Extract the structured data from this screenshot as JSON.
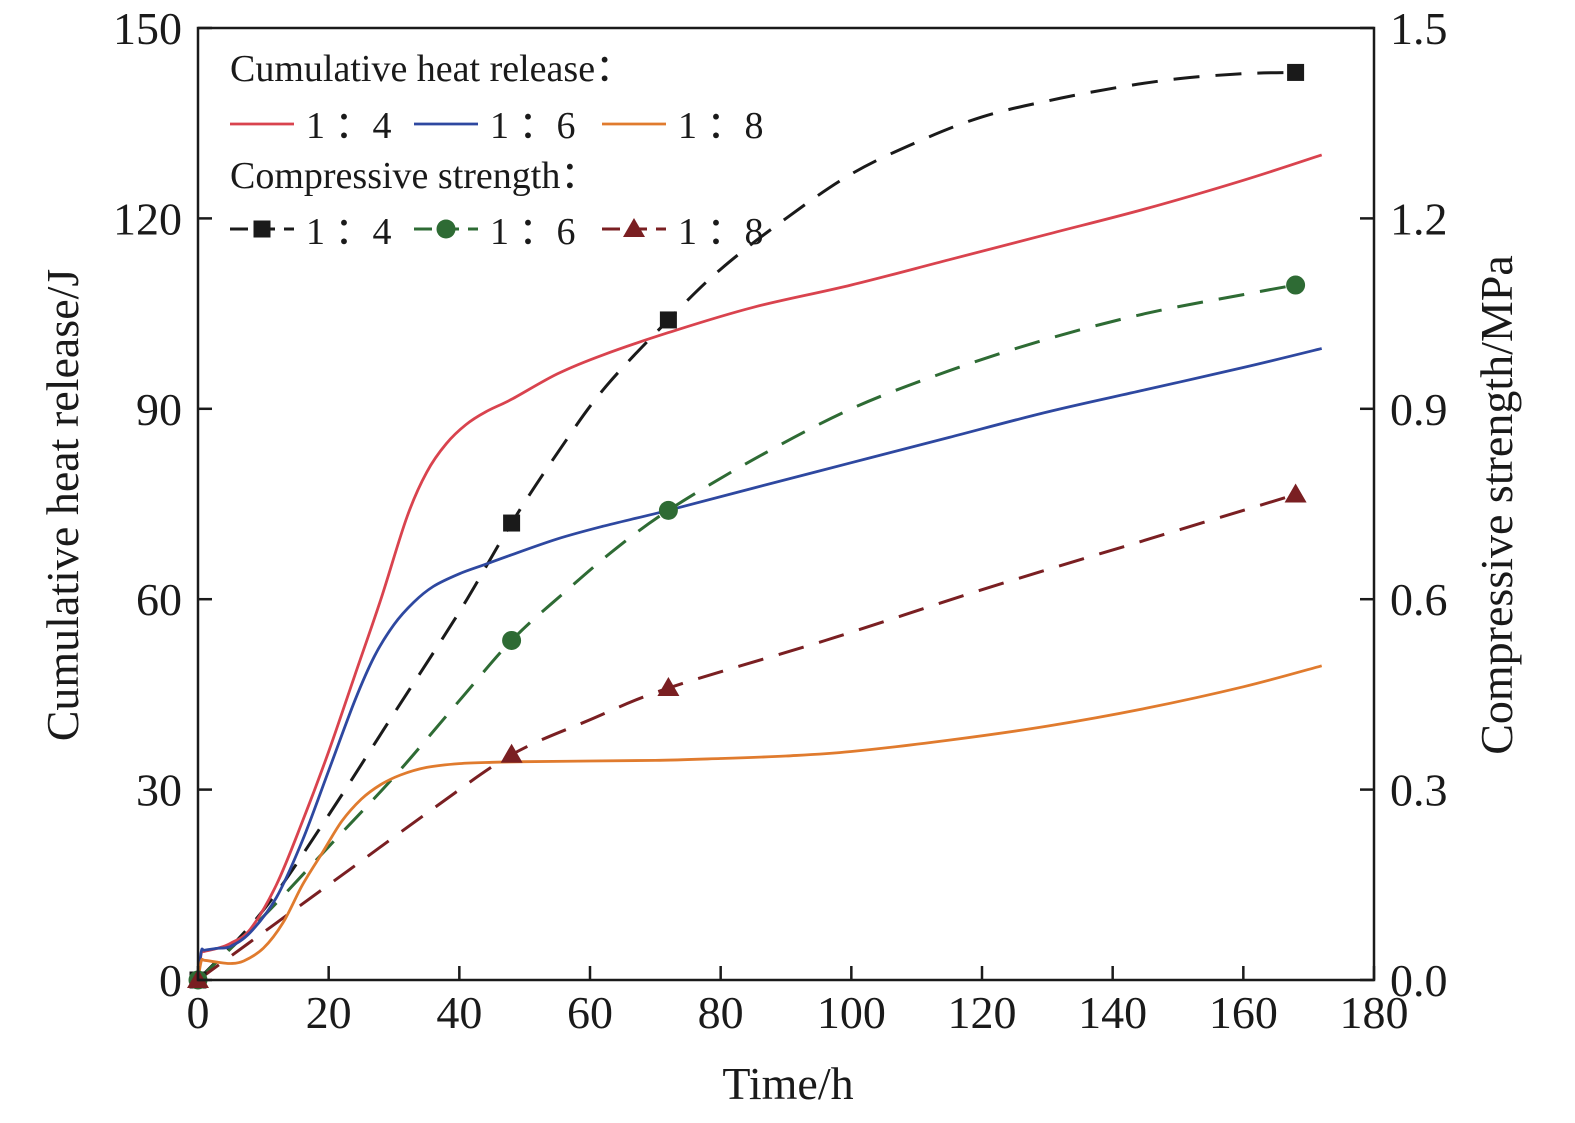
{
  "chart_data": {
    "type": "line",
    "xlabel": "Time/h",
    "ylabel_left": "Cumulative heat release/J",
    "ylabel_right": "Compressive strength/MPa",
    "xlim": [
      0,
      180
    ],
    "ylim_left": [
      0,
      150
    ],
    "ylim_right": [
      0.0,
      1.5
    ],
    "x_ticks": [
      "0",
      "20",
      "40",
      "60",
      "80",
      "100",
      "120",
      "140",
      "160",
      "180"
    ],
    "y_left_ticks": [
      "0",
      "30",
      "60",
      "90",
      "120",
      "150"
    ],
    "y_right_ticks": [
      "0.0",
      "0.3",
      "0.6",
      "0.9",
      "1.2",
      "1.5"
    ],
    "grid": false,
    "legend": {
      "placement": "top-left",
      "group1_title": "Cumulative heat release：",
      "group2_title": "Compressive strength：",
      "labels": [
        "1 ：4",
        "1 ：6",
        "1 ：8"
      ]
    },
    "heat_series": [
      {
        "name": "1 ：4",
        "color": "#d9434e",
        "x": [
          0,
          0.5,
          1,
          3,
          5,
          8,
          12,
          16,
          20,
          24,
          28,
          32,
          35,
          38,
          41,
          44,
          48,
          55,
          62,
          72,
          85,
          100,
          115,
          130,
          145,
          160,
          172
        ],
        "y": [
          0,
          4.2,
          4.5,
          5,
          5.8,
          8,
          15,
          25,
          36,
          48,
          60,
          73,
          80,
          84.5,
          87.5,
          89.5,
          91.5,
          95.5,
          98.5,
          102,
          106,
          109.5,
          113.5,
          117.5,
          121.5,
          126,
          130
        ]
      },
      {
        "name": "1 ：6",
        "color": "#2e48a0",
        "x": [
          0,
          0.5,
          1,
          3,
          5,
          8,
          12,
          16,
          20,
          24,
          27,
          30,
          33,
          36,
          40,
          44,
          48,
          55,
          62,
          72,
          85,
          100,
          115,
          130,
          145,
          160,
          172
        ],
        "y": [
          0,
          4.5,
          4.7,
          5,
          5.3,
          7.5,
          13,
          22,
          33,
          44,
          51,
          56,
          59.5,
          62,
          64,
          65.5,
          67,
          69.5,
          71.5,
          74,
          77.5,
          81.5,
          85.5,
          89.5,
          93,
          96.5,
          99.5
        ]
      },
      {
        "name": "1 ：8",
        "color": "#e07b2e",
        "x": [
          0,
          0.5,
          1,
          3,
          5,
          7,
          10,
          13,
          16,
          19,
          22,
          25,
          28,
          31,
          35,
          40,
          45,
          50,
          60,
          70,
          80,
          90,
          100,
          115,
          130,
          145,
          160,
          172
        ],
        "y": [
          0,
          3,
          3.1,
          2.8,
          2.6,
          3,
          5,
          9,
          15,
          20,
          25,
          28.5,
          30.8,
          32.3,
          33.5,
          34.1,
          34.3,
          34.4,
          34.5,
          34.6,
          34.9,
          35.3,
          36,
          37.8,
          40,
          42.8,
          46.2,
          49.5
        ]
      }
    ],
    "strength_series": [
      {
        "name": "1 ：4",
        "color": "#1a1a1a",
        "marker": "square",
        "x": [
          0,
          48,
          72,
          168
        ],
        "y": [
          0.0,
          0.72,
          1.04,
          1.43
        ],
        "curve_x": [
          0,
          10,
          20,
          30,
          40,
          48,
          55,
          62,
          72,
          80,
          90,
          100,
          110,
          120,
          130,
          140,
          150,
          160,
          168
        ],
        "curve_y": [
          0,
          0.11,
          0.26,
          0.42,
          0.58,
          0.72,
          0.83,
          0.93,
          1.04,
          1.12,
          1.2,
          1.27,
          1.32,
          1.36,
          1.385,
          1.405,
          1.42,
          1.428,
          1.43
        ]
      },
      {
        "name": "1 ：6",
        "color": "#2e6b34",
        "marker": "circle",
        "x": [
          0,
          48,
          72,
          168
        ],
        "y": [
          0.0,
          0.535,
          0.74,
          1.095
        ],
        "curve_x": [
          0,
          10,
          20,
          30,
          40,
          48,
          56,
          64,
          72,
          85,
          100,
          115,
          130,
          145,
          160,
          168
        ],
        "curve_y": [
          0,
          0.1,
          0.21,
          0.32,
          0.44,
          0.535,
          0.61,
          0.68,
          0.74,
          0.82,
          0.9,
          0.96,
          1.01,
          1.05,
          1.08,
          1.095
        ]
      },
      {
        "name": "1 ：8",
        "color": "#7a1f22",
        "marker": "triangle",
        "x": [
          0,
          48,
          72,
          168
        ],
        "y": [
          0.0,
          0.355,
          0.46,
          0.765
        ],
        "curve_x": [
          0,
          12,
          24,
          36,
          48,
          60,
          72,
          96,
          120,
          144,
          168
        ],
        "curve_y": [
          0,
          0.09,
          0.18,
          0.27,
          0.355,
          0.41,
          0.46,
          0.535,
          0.615,
          0.69,
          0.765
        ]
      }
    ]
  }
}
